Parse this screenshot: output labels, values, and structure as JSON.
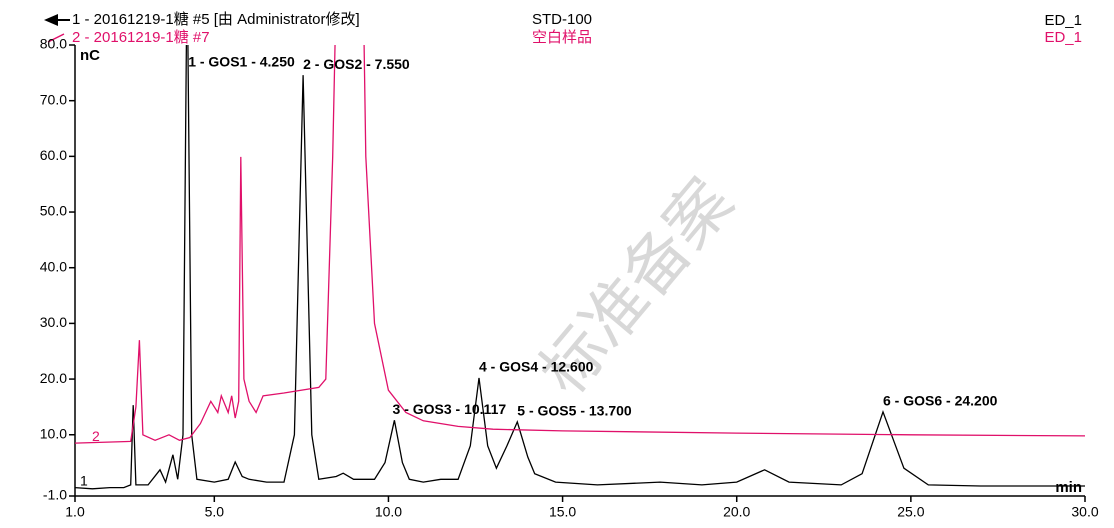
{
  "chart_data": {
    "type": "line",
    "header": [
      {
        "text": "1 - 20161219-1糖 #5 [由 Administrator修改]",
        "sample": "STD-100",
        "channel": "ED_1",
        "color": "#000000"
      },
      {
        "text": "2 - 20161219-1糖 #7",
        "sample": "空白样品",
        "channel": "ED_1",
        "color": "#e0106a"
      }
    ],
    "y_label": "nC",
    "x_label": "min",
    "watermark": "标准备案",
    "xlim": [
      1,
      30
    ],
    "xticks": [
      {
        "value": 1,
        "label": "1.0"
      },
      {
        "value": 5,
        "label": "5.0"
      },
      {
        "value": 10,
        "label": "10.0"
      },
      {
        "value": 15,
        "label": "15.0"
      },
      {
        "value": 20,
        "label": "20.0"
      },
      {
        "value": 25,
        "label": "25.0"
      },
      {
        "value": 30,
        "label": "30.0"
      }
    ],
    "ylim": [
      -1,
      80
    ],
    "yticks": [
      {
        "value": -1,
        "label": "-1.0"
      },
      {
        "value": 10,
        "label": "10.0"
      },
      {
        "value": 20,
        "label": "20.0"
      },
      {
        "value": 30,
        "label": "30.0"
      },
      {
        "value": 40,
        "label": "40.0"
      },
      {
        "value": 50,
        "label": "50.0"
      },
      {
        "value": 60,
        "label": "60.0"
      },
      {
        "value": 70,
        "label": "70.0"
      },
      {
        "value": 80,
        "label": "80.0"
      }
    ],
    "series": [
      {
        "name": "1",
        "color": "#000000",
        "x": [
          1.0,
          1.5,
          2.0,
          2.4,
          2.6,
          2.67,
          2.75,
          3.1,
          3.44,
          3.6,
          3.81,
          3.95,
          4.1,
          4.22,
          4.35,
          4.5,
          5.0,
          5.4,
          5.6,
          5.8,
          6.0,
          6.5,
          7.0,
          7.3,
          7.55,
          7.8,
          8.0,
          8.5,
          8.7,
          9.0,
          9.6,
          9.9,
          10.17,
          10.4,
          10.6,
          11.0,
          11.5,
          12.0,
          12.35,
          12.6,
          12.85,
          13.1,
          13.4,
          13.7,
          14.0,
          14.2,
          14.8,
          16.0,
          17.8,
          19.0,
          20.0,
          20.8,
          21.5,
          23.0,
          23.6,
          24.2,
          24.8,
          25.5,
          27.0,
          30.0
        ],
        "values": [
          0.5,
          0.3,
          0.5,
          0.5,
          1,
          15.3,
          1,
          1,
          3.7,
          1.5,
          6.4,
          2,
          10,
          95,
          10,
          2,
          1.5,
          2,
          5.1,
          2.5,
          2,
          1.5,
          1.5,
          10,
          74.6,
          10,
          2,
          2.5,
          3.1,
          2,
          2,
          5,
          12.6,
          5,
          2,
          1.5,
          2,
          2,
          8,
          20.2,
          8,
          4,
          8,
          12.3,
          6,
          3,
          1.5,
          1,
          1.5,
          1,
          1.5,
          3.7,
          1.5,
          1,
          3,
          14.1,
          4,
          1,
          0.8,
          0.8
        ]
      },
      {
        "name": "2",
        "color": "#e0106a",
        "x": [
          1.0,
          2.6,
          2.75,
          2.85,
          2.95,
          3.3,
          3.7,
          4.0,
          4.3,
          4.6,
          4.9,
          5.1,
          5.2,
          5.4,
          5.5,
          5.6,
          5.7,
          5.76,
          5.85,
          6.0,
          6.2,
          6.4,
          7.0,
          8.0,
          8.2,
          8.4,
          8.5,
          9.2,
          9.3,
          9.35,
          9.6,
          10.0,
          10.5,
          11.0,
          12.0,
          13.0,
          15.0,
          20.0,
          25.0,
          30.0
        ],
        "values": [
          8.5,
          8.8,
          15,
          27,
          10,
          9,
          10,
          9,
          9.5,
          12,
          16,
          14,
          17,
          14,
          17,
          13,
          16,
          59.9,
          20,
          16,
          14,
          17,
          17.5,
          18.5,
          20,
          60,
          90,
          90,
          80,
          60,
          30,
          18,
          14,
          12.5,
          11.5,
          11,
          10.7,
          10.3,
          10,
          9.8
        ]
      }
    ],
    "peaks": [
      {
        "label": "1 - GOS1 - 4.250",
        "time": 4.25
      },
      {
        "label": "2 - GOS2 - 7.550",
        "time": 7.55
      },
      {
        "label": "3 - GOS3 - 10.117",
        "time": 10.117
      },
      {
        "label": "4 - GOS4 - 12.600",
        "time": 12.6
      },
      {
        "label": "5 - GOS5 - 13.700",
        "time": 13.7
      },
      {
        "label": "6 - GOS6 - 24.200",
        "time": 24.2
      }
    ]
  }
}
